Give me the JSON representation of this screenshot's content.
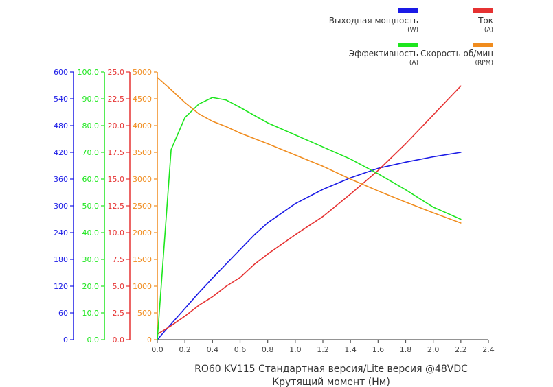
{
  "chart_data": {
    "type": "line",
    "title": "RO60 KV115 Стандартная версия/Lite версия  @48VDC",
    "xlabel": "Крутящий момент (Нм)",
    "xlim": [
      0,
      2.4
    ],
    "x_ticks": [
      "0.0",
      "0.2",
      "0.4",
      "0.6",
      "0.8",
      "1.0",
      "1.2",
      "1.4",
      "1.6",
      "1.8",
      "2.0",
      "2.2",
      "2.4"
    ],
    "grid": false,
    "legend_position": "top-right",
    "axes": [
      {
        "id": "power",
        "color": "#1a1ae6",
        "ylim": [
          0,
          600
        ],
        "ticks": [
          "0",
          "60",
          "120",
          "180",
          "240",
          "300",
          "360",
          "420",
          "480",
          "540",
          "600"
        ]
      },
      {
        "id": "efficiency",
        "color": "#1ee61e",
        "ylim": [
          0,
          100
        ],
        "ticks": [
          "0.0",
          "10.0",
          "20.0",
          "30.0",
          "40.0",
          "50.0",
          "60.0",
          "70.0",
          "80.0",
          "90.0",
          "100.0"
        ]
      },
      {
        "id": "current",
        "color": "#e63232",
        "ylim": [
          0,
          25
        ],
        "ticks": [
          "0.0",
          "2.5",
          "5.0",
          "7.5",
          "10.0",
          "12.5",
          "15.0",
          "17.5",
          "20.0",
          "22.5",
          "25.0"
        ]
      },
      {
        "id": "speed",
        "color": "#f08c1e",
        "ylim": [
          0,
          5000
        ],
        "ticks": [
          "0",
          "500",
          "1000",
          "1500",
          "2000",
          "2500",
          "3000",
          "3500",
          "4000",
          "4500",
          "5000"
        ]
      }
    ],
    "series": [
      {
        "name": "Выходная мощность",
        "unit": "(W)",
        "axis": "power",
        "color": "#1a1ae6",
        "x": [
          0.0,
          0.2,
          0.3,
          0.4,
          0.5,
          0.6,
          0.7,
          0.8,
          1.0,
          1.2,
          1.4,
          1.6,
          1.8,
          2.0,
          2.2
        ],
        "y": [
          0,
          70,
          105,
          138,
          170,
          202,
          234,
          262,
          305,
          337,
          363,
          384,
          398,
          410,
          420
        ]
      },
      {
        "name": "Ток",
        "unit": "(A)",
        "axis": "current",
        "color": "#e63232",
        "x": [
          0.0,
          0.1,
          0.2,
          0.3,
          0.4,
          0.5,
          0.6,
          0.7,
          0.8,
          1.0,
          1.2,
          1.4,
          1.6,
          1.8,
          2.0,
          2.2
        ],
        "y": [
          0.5,
          1.3,
          2.2,
          3.2,
          4.0,
          5.0,
          5.8,
          7.0,
          8.0,
          9.8,
          11.5,
          13.6,
          15.8,
          18.3,
          21.0,
          23.7
        ]
      },
      {
        "name": "Эффективность",
        "unit": "(A)",
        "axis": "efficiency",
        "color": "#1ee61e",
        "x": [
          0.0,
          0.1,
          0.2,
          0.3,
          0.4,
          0.5,
          0.6,
          0.8,
          1.0,
          1.2,
          1.4,
          1.6,
          1.8,
          2.0,
          2.2
        ],
        "y": [
          0,
          71,
          83,
          88,
          90.5,
          89.5,
          86.8,
          81,
          76.5,
          72,
          67.5,
          62,
          56,
          49.5,
          45
        ]
      },
      {
        "name": "Скорость об/мин",
        "unit": "(RPM)",
        "axis": "speed",
        "color": "#f08c1e",
        "x": [
          0.0,
          0.1,
          0.2,
          0.3,
          0.4,
          0.5,
          0.6,
          0.8,
          1.0,
          1.2,
          1.4,
          1.6,
          1.8,
          2.0,
          2.2
        ],
        "y": [
          4900,
          4670,
          4430,
          4220,
          4080,
          3980,
          3860,
          3660,
          3450,
          3240,
          3000,
          2780,
          2570,
          2370,
          2180
        ]
      }
    ]
  }
}
